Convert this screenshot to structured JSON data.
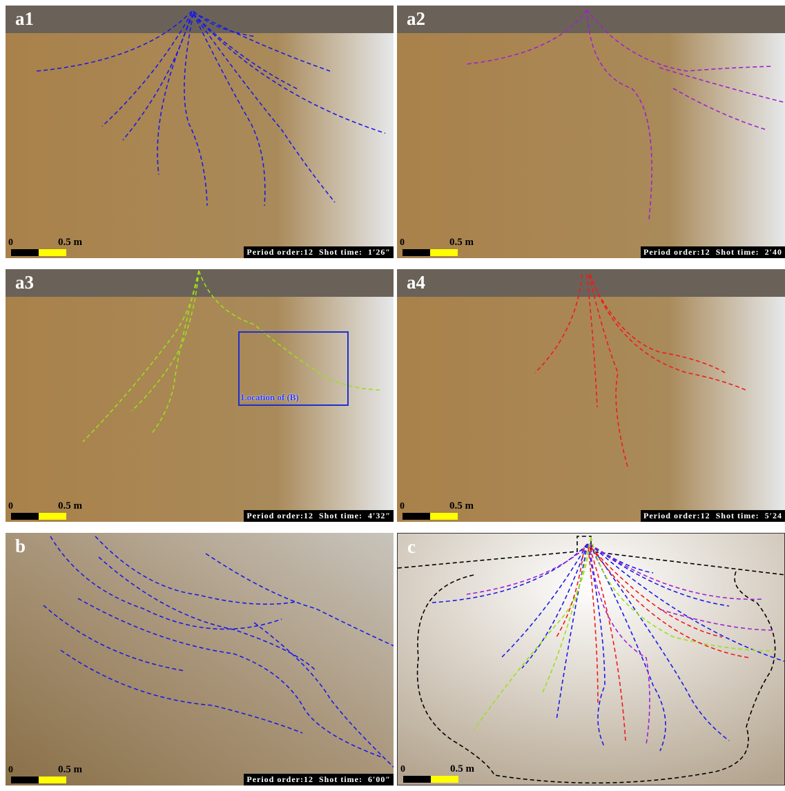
{
  "panels": [
    {
      "label": "a1",
      "scale_zero": "0",
      "scale_label": "0.5 m",
      "caption": "Period order:12  Shot time:  1′26″"
    },
    {
      "label": "a2",
      "scale_zero": "0",
      "scale_label": "0.5 m",
      "caption": "Period order:12  Shot time:  2′40"
    },
    {
      "label": "a3",
      "scale_zero": "0",
      "scale_label": "0.5 m",
      "caption": "Period order:12  Shot time:  4′32″",
      "annotation": "Location of (B)"
    },
    {
      "label": "a4",
      "scale_zero": "0",
      "scale_label": "0.5 m",
      "caption": "Period order:12  Shot time:  5′24"
    },
    {
      "label": "b",
      "scale_zero": "0",
      "scale_label": "0.5 m",
      "caption": "Period order:12  Shot time:  6′00″"
    },
    {
      "label": "c",
      "scale_zero": "0",
      "scale_label": "0.5 m"
    }
  ]
}
